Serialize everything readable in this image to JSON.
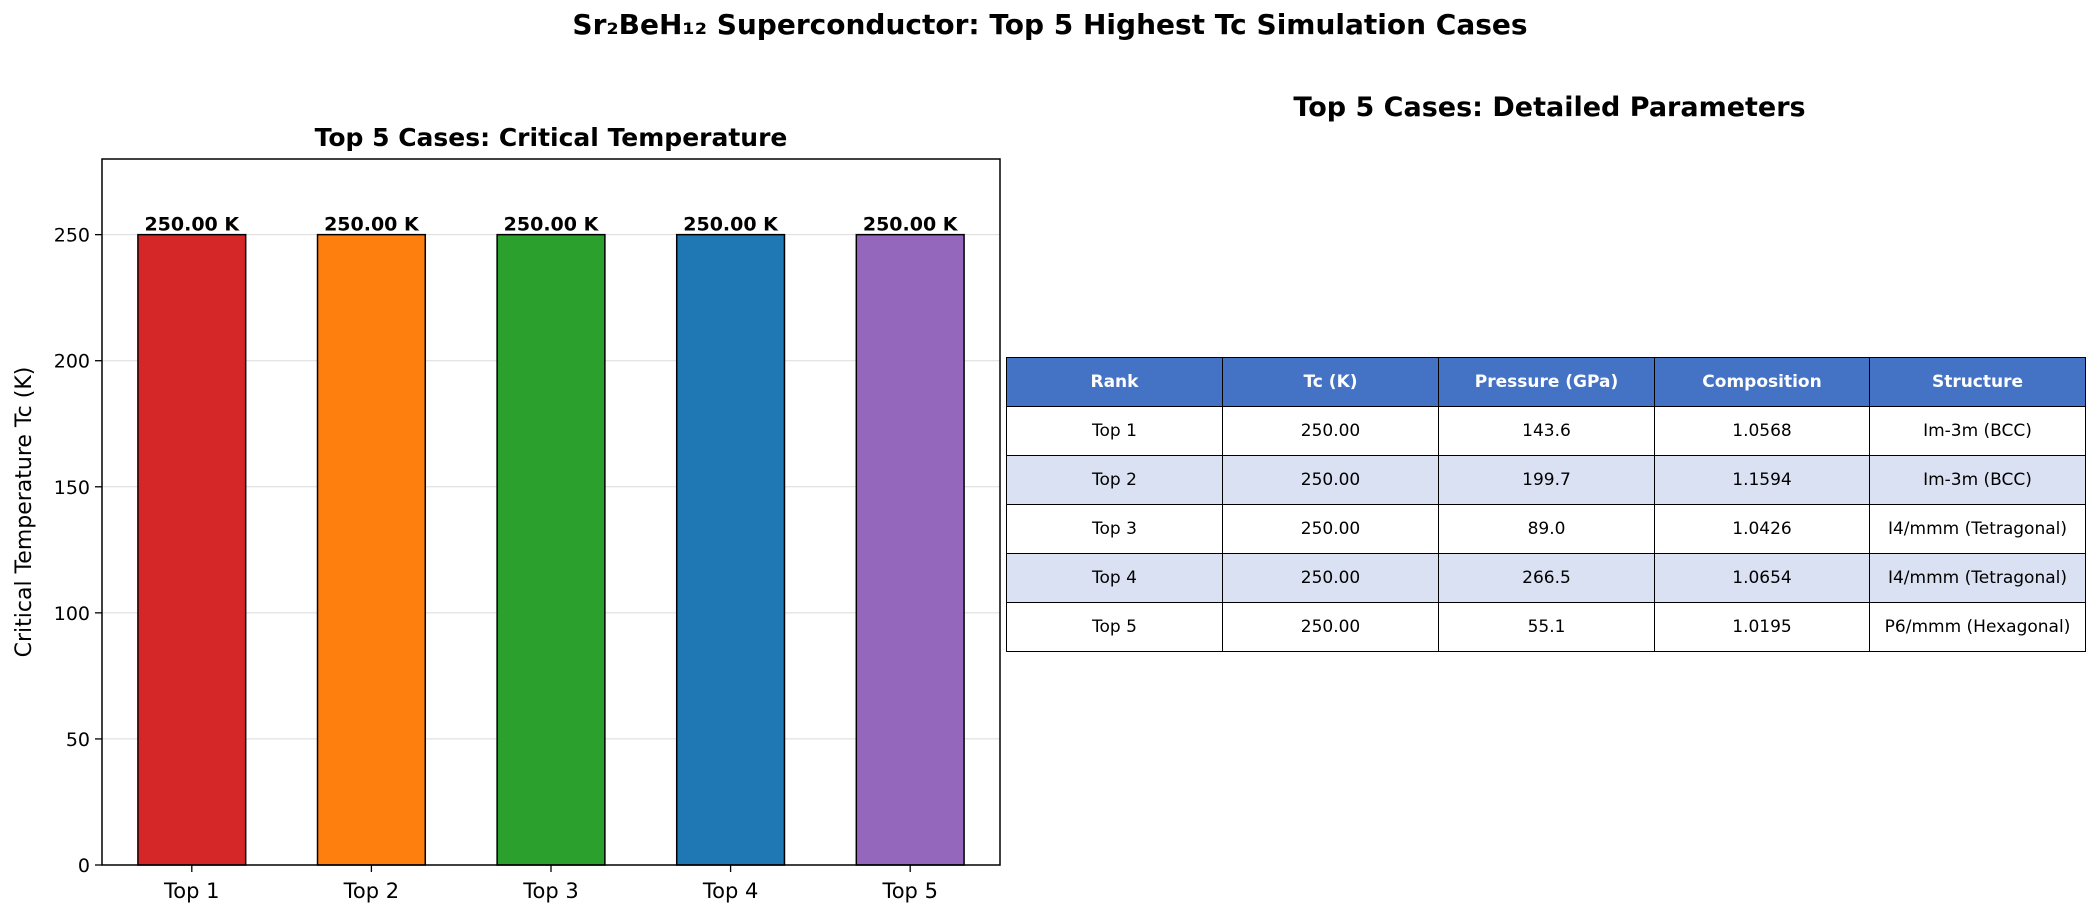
{
  "title": "Sr₂BeH₁₂ Superconductor: Top 5 Highest Tc Simulation Cases",
  "colors": {
    "bars": [
      "#d62728",
      "#ff7f0e",
      "#2ca02c",
      "#1f77b4",
      "#9467bd"
    ],
    "header_bg": "#4472c4",
    "header_text": "#ffffff",
    "row_alt": "#d9e1f2",
    "row_plain": "#ffffff"
  },
  "chart_data": {
    "type": "bar",
    "title": "Top 5 Cases: Critical Temperature",
    "xlabel": "",
    "ylabel": "Critical Temperature Tc (K)",
    "categories": [
      "Top 1",
      "Top 2",
      "Top 3",
      "Top 4",
      "Top 5"
    ],
    "values": [
      250.0,
      250.0,
      250.0,
      250.0,
      250.0
    ],
    "data_labels": [
      "250.00 K",
      "250.00 K",
      "250.00 K",
      "250.00 K",
      "250.00 K"
    ],
    "ylim": [
      0,
      280
    ],
    "yticks": [
      0,
      50,
      100,
      150,
      200,
      250
    ],
    "grid": true
  },
  "table": {
    "title": "Top 5 Cases: Detailed Parameters",
    "columns": [
      "Rank",
      "Tc (K)",
      "Pressure (GPa)",
      "Composition",
      "Structure"
    ],
    "rows": [
      [
        "Top 1",
        "250.00",
        "143.6",
        "1.0568",
        "Im-3m (BCC)"
      ],
      [
        "Top 2",
        "250.00",
        "199.7",
        "1.1594",
        "Im-3m (BCC)"
      ],
      [
        "Top 3",
        "250.00",
        "89.0",
        "1.0426",
        "I4/mmm (Tetragonal)"
      ],
      [
        "Top 4",
        "250.00",
        "266.5",
        "1.0654",
        "I4/mmm (Tetragonal)"
      ],
      [
        "Top 5",
        "250.00",
        "55.1",
        "1.0195",
        "P6/mmm (Hexagonal)"
      ]
    ]
  }
}
